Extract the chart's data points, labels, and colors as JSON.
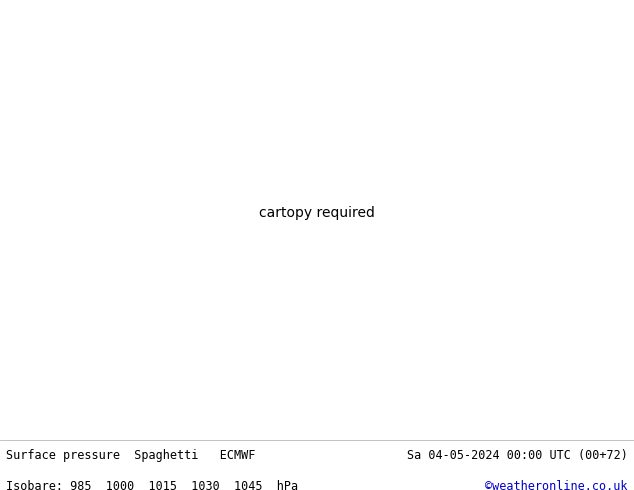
{
  "title_left": "Surface pressure  Spaghetti   ECMWF",
  "title_right": "Sa 04-05-2024 00:00 UTC (00+72)",
  "subtitle_left": "Isobare: 985  1000  1015  1030  1045  hPa",
  "subtitle_right": "©weatheronline.co.uk",
  "subtitle_right_color": "#0000cc",
  "bg_color": "#ffffff",
  "map_land_color": "#c8f0b0",
  "map_ocean_color": "#e8e8e8",
  "map_border_color": "#888888",
  "figsize": [
    6.34,
    4.9
  ],
  "dpi": 100,
  "text_color": "#000000",
  "footer_fontsize": 8.5,
  "lon_min": -120,
  "lon_max": -20,
  "lat_min": -60,
  "lat_max": 40,
  "member_colors": [
    "#888888",
    "#aaaaaa",
    "#666666",
    "#999999",
    "#cccccc",
    "#0000ff",
    "#0055ff",
    "#0088ff",
    "#00aaff",
    "#0033dd",
    "#ff00ff",
    "#cc00ff",
    "#ff00cc",
    "#cc00cc",
    "#990099",
    "#ff8800",
    "#ffaa00",
    "#dd6600",
    "#ff6600",
    "#cc8800",
    "#00cc00",
    "#009900",
    "#00ff44",
    "#33cc00",
    "#006600",
    "#ff0000",
    "#cc0000",
    "#ff3300",
    "#dd0000",
    "#ff2200",
    "#00cccc",
    "#00aaaa",
    "#009999",
    "#00bbbb",
    "#008888",
    "#ffcc00",
    "#ffdd00",
    "#ddaa00",
    "#ffbb00",
    "#cc9900",
    "#8800ff",
    "#6600cc",
    "#aa00ff",
    "#7700dd",
    "#5500aa",
    "#ff6688",
    "#ff3366",
    "#cc3366",
    "#ff0044",
    "#dd0055",
    "#44ffaa"
  ]
}
